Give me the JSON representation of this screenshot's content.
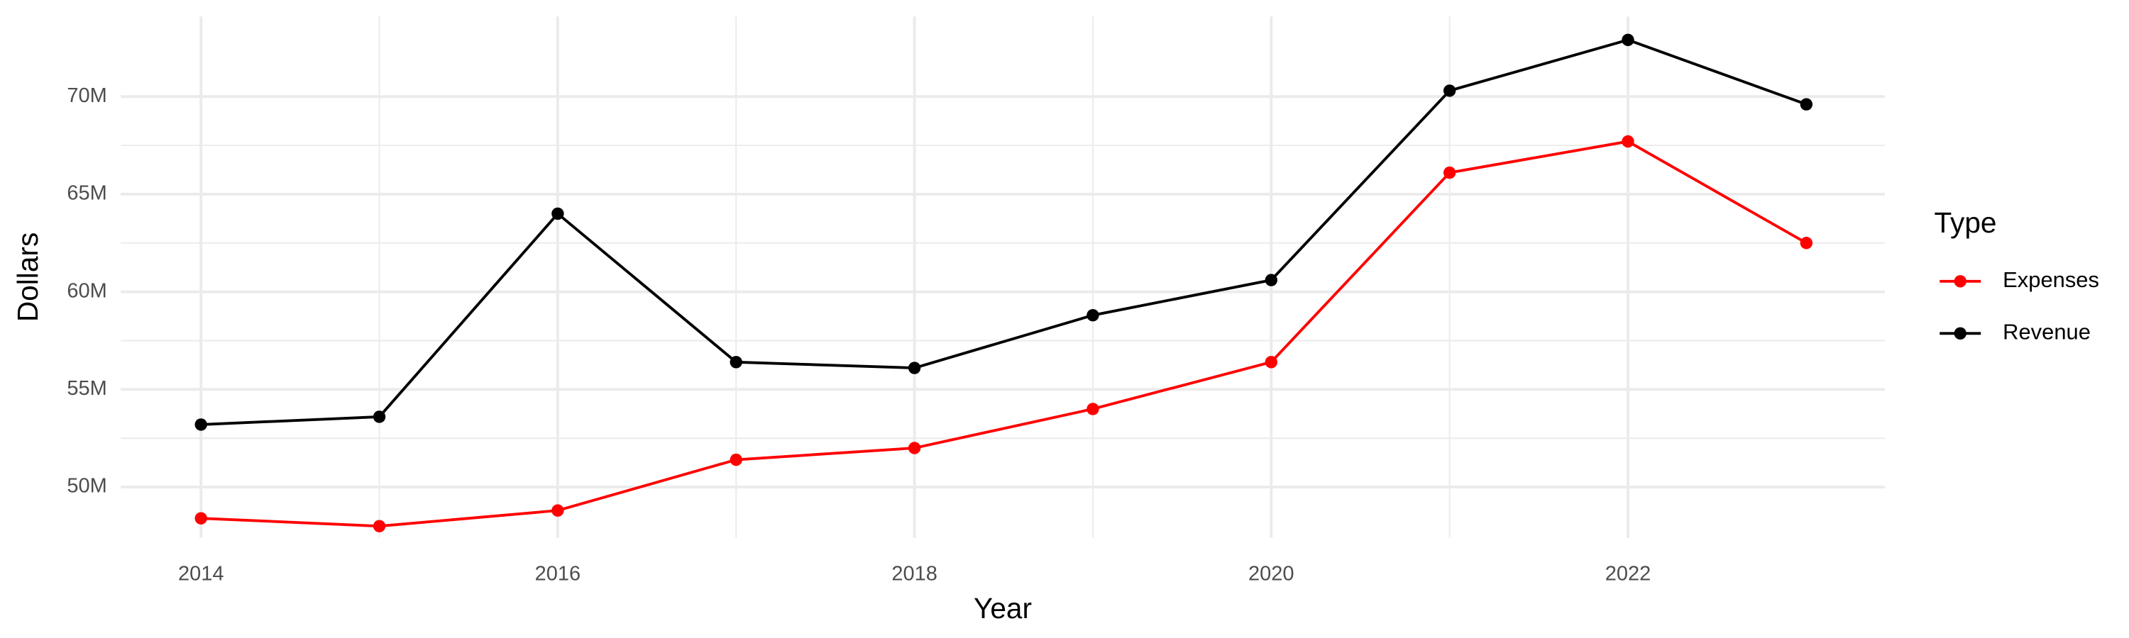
{
  "chart_data": {
    "type": "line",
    "x_label": "Year",
    "y_label": "Dollars",
    "legend_title": "Type",
    "x": [
      2014,
      2015,
      2016,
      2017,
      2018,
      2019,
      2020,
      2021,
      2022,
      2023
    ],
    "series": [
      {
        "name": "Expenses",
        "color": "#ff0000",
        "values": [
          48400000,
          48000000,
          48800000,
          51400000,
          52000000,
          54000000,
          56400000,
          66100000,
          67700000,
          62500000
        ]
      },
      {
        "name": "Revenue",
        "color": "#000000",
        "values": [
          53200000,
          53600000,
          64000000,
          56400000,
          56100000,
          58800000,
          60600000,
          70300000,
          72900000,
          69600000
        ]
      }
    ],
    "xlim": [
      2013.55,
      2023.44
    ],
    "xticks": [
      2014,
      2016,
      2018,
      2020,
      2022
    ],
    "ylim": [
      47400000,
      74100000
    ],
    "yticks": [
      {
        "value": 50000000,
        "label": "50M"
      },
      {
        "value": 55000000,
        "label": "55M"
      },
      {
        "value": 60000000,
        "label": "60M"
      },
      {
        "value": 65000000,
        "label": "65M"
      },
      {
        "value": 70000000,
        "label": "70M"
      }
    ],
    "grid": true,
    "legend_position": "right"
  }
}
